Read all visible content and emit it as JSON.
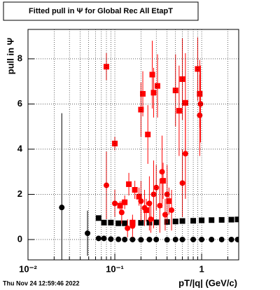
{
  "chart_data": {
    "type": "scatter",
    "title": "Fitted pull in  Ψ  for Global Rec All EtapT",
    "y_label": "pull in  Ψ",
    "x_label": "pT/|q| (GeV/c)",
    "timestamp": "Thu Nov 24 12:59:46 2022",
    "xlog": true,
    "grid": true,
    "xlim": [
      0.01,
      2.67
    ],
    "ylim": [
      -0.9,
      9.3
    ],
    "xticks": [
      {
        "value": 0.01,
        "label": "10⁻²"
      },
      {
        "value": 0.1,
        "label": "10⁻¹"
      },
      1
    ],
    "xminor": [
      0.02,
      0.03,
      0.04,
      0.05,
      0.06,
      0.07,
      0.08,
      0.09,
      0.2,
      0.3,
      0.4,
      0.5,
      0.6,
      0.7,
      0.8,
      0.9,
      2
    ],
    "yticks": [
      0,
      2,
      4,
      6,
      8
    ],
    "series": [
      {
        "color": "#000000",
        "marker": "square",
        "x": [
          0.065,
          0.075,
          0.09,
          0.11,
          0.13,
          0.16,
          0.2,
          0.25,
          0.3,
          0.4,
          0.5,
          0.6,
          0.8,
          1.0,
          1.3,
          1.7,
          2.2,
          2.6
        ],
        "values": [
          0.95,
          0.75,
          0.75,
          0.72,
          0.72,
          0.74,
          0.74,
          0.75,
          0.76,
          0.78,
          0.8,
          0.82,
          0.83,
          0.85,
          0.86,
          0.87,
          0.88,
          0.89
        ],
        "yerr": [
          0.05,
          0.03,
          0.03,
          0.03,
          0.02,
          0.02,
          0.02,
          0.02,
          0.02,
          0.02,
          0.02,
          0.02,
          0.02,
          0.02,
          0.02,
          0.02,
          0.02,
          0.02
        ]
      },
      {
        "color": "#000000",
        "marker": "circle",
        "x": [
          0.0245,
          0.0485,
          0.065,
          0.075,
          0.09,
          0.11,
          0.13,
          0.16,
          0.2,
          0.25,
          0.3,
          0.4,
          0.5,
          0.6,
          0.8,
          1.0,
          1.3,
          1.7,
          2.2,
          2.6
        ],
        "values": [
          1.42,
          0.28,
          0.05,
          0.05,
          0.02,
          0.01,
          0.0,
          0.0,
          -0.01,
          0.0,
          0.0,
          -0.01,
          0.0,
          0.0,
          0.0,
          0.0,
          0.0,
          0.0,
          0.0,
          0.0
        ],
        "yerr": [
          4.17,
          1.0,
          0.05,
          0.04,
          0.03,
          0.03,
          0.02,
          0.02,
          0.02,
          0.02,
          0.02,
          0.02,
          0.02,
          0.02,
          0.02,
          0.02,
          0.02,
          0.02,
          0.02,
          0.02
        ]
      },
      {
        "color": "#ff0000",
        "marker": "square",
        "x": [
          0.08,
          0.1,
          0.115,
          0.13,
          0.145,
          0.17,
          0.2,
          0.21,
          0.24,
          0.27,
          0.28,
          0.31,
          0.5,
          0.55,
          0.6,
          0.65,
          0.9,
          0.95,
          0.16,
          0.19,
          0.23,
          0.36,
          0.42
        ],
        "values": [
          7.65,
          4.25,
          1.5,
          1.65,
          2.45,
          2.2,
          5.75,
          6.45,
          4.65,
          7.3,
          6.5,
          6.8,
          6.6,
          5.7,
          7.1,
          6.05,
          7.55,
          6.45,
          0.75,
          1.9,
          1.3,
          2.6,
          1.7
        ],
        "yerr": [
          0.6,
          0.3,
          0.2,
          0.3,
          0.5,
          0.4,
          1.2,
          1.0,
          1.3,
          1.5,
          1.1,
          1.4,
          1.6,
          2.0,
          1.8,
          2.2,
          1.4,
          1.5,
          0.2,
          0.4,
          0.5,
          0.8,
          0.6
        ]
      },
      {
        "color": "#ff0000",
        "marker": "circle",
        "x": [
          0.08,
          0.1,
          0.12,
          0.14,
          0.16,
          0.2,
          0.22,
          0.25,
          0.28,
          0.3,
          0.33,
          0.35,
          0.4,
          0.45,
          0.6,
          0.65,
          0.95,
          0.97,
          0.26,
          0.38
        ],
        "values": [
          2.4,
          1.6,
          1.2,
          0.5,
          0.6,
          1.7,
          1.4,
          1.6,
          2.0,
          2.3,
          1.5,
          3.0,
          2.0,
          1.3,
          2.5,
          3.8,
          5.5,
          6.0,
          0.9,
          1.1
        ],
        "yerr": [
          1.5,
          0.6,
          0.5,
          0.4,
          0.5,
          0.9,
          0.8,
          1.2,
          1.5,
          1.0,
          1.2,
          1.6,
          1.3,
          0.9,
          1.5,
          2.0,
          1.8,
          1.7,
          0.6,
          0.7
        ]
      }
    ]
  }
}
